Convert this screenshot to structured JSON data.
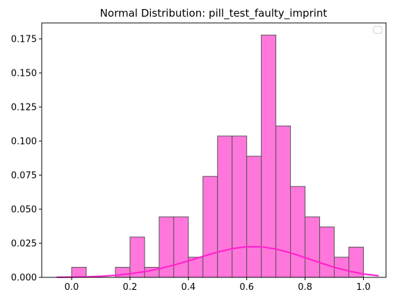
{
  "chart_data": {
    "type": "bar",
    "title": "Normal Distribution: pill_test_faulty_imprint",
    "xlabel": "",
    "ylabel": "",
    "xlim": [
      -0.1025,
      1.0775
    ],
    "ylim": [
      0,
      0.1867
    ],
    "x_ticks": [
      0.0,
      0.2,
      0.4,
      0.6,
      0.8,
      1.0
    ],
    "x_tick_labels": [
      "0.0",
      "0.2",
      "0.4",
      "0.6",
      "0.8",
      "1.0"
    ],
    "y_ticks": [
      0.0,
      0.025,
      0.05,
      0.075,
      0.1,
      0.125,
      0.15,
      0.175
    ],
    "y_tick_labels": [
      "0.000",
      "0.025",
      "0.050",
      "0.075",
      "0.100",
      "0.125",
      "0.150",
      "0.175"
    ],
    "bin_width": 0.05,
    "bins": [
      {
        "x0": 0.0,
        "x1": 0.05,
        "density": 0.0074
      },
      {
        "x0": 0.15,
        "x1": 0.2,
        "density": 0.0074
      },
      {
        "x0": 0.2,
        "x1": 0.25,
        "density": 0.0296
      },
      {
        "x0": 0.25,
        "x1": 0.3,
        "density": 0.0074
      },
      {
        "x0": 0.3,
        "x1": 0.35,
        "density": 0.0444
      },
      {
        "x0": 0.35,
        "x1": 0.4,
        "density": 0.0444
      },
      {
        "x0": 0.4,
        "x1": 0.45,
        "density": 0.0148
      },
      {
        "x0": 0.45,
        "x1": 0.5,
        "density": 0.0741
      },
      {
        "x0": 0.5,
        "x1": 0.55,
        "density": 0.1037
      },
      {
        "x0": 0.55,
        "x1": 0.6,
        "density": 0.1037
      },
      {
        "x0": 0.6,
        "x1": 0.65,
        "density": 0.0889
      },
      {
        "x0": 0.65,
        "x1": 0.7,
        "density": 0.1778
      },
      {
        "x0": 0.7,
        "x1": 0.75,
        "density": 0.1111
      },
      {
        "x0": 0.75,
        "x1": 0.8,
        "density": 0.0667
      },
      {
        "x0": 0.8,
        "x1": 0.85,
        "density": 0.0444
      },
      {
        "x0": 0.85,
        "x1": 0.9,
        "density": 0.037
      },
      {
        "x0": 0.9,
        "x1": 0.95,
        "density": 0.0148
      },
      {
        "x0": 0.95,
        "x1": 1.0,
        "density": 0.0222
      }
    ],
    "curve": {
      "type": "line",
      "x": [
        -0.05,
        0.0,
        0.05,
        0.1,
        0.15,
        0.2,
        0.25,
        0.3,
        0.35,
        0.4,
        0.45,
        0.5,
        0.55,
        0.6,
        0.65,
        0.7,
        0.75,
        0.8,
        0.85,
        0.9,
        0.95,
        1.0,
        1.05
      ],
      "y": [
        0.0001,
        0.0002,
        0.0004,
        0.0008,
        0.0015,
        0.0026,
        0.0042,
        0.0063,
        0.009,
        0.0121,
        0.0154,
        0.0185,
        0.0211,
        0.0225,
        0.0224,
        0.0208,
        0.018,
        0.0145,
        0.0108,
        0.0074,
        0.0046,
        0.0025,
        0.0012
      ]
    },
    "grid": false,
    "legend": {
      "placement": "top-right",
      "entries": []
    },
    "colors": {
      "bar_fill": "#ff77db",
      "bar_edge": "#555555",
      "curve": "#ff22cc",
      "axis": "#000000",
      "background": "#ffffff"
    }
  }
}
